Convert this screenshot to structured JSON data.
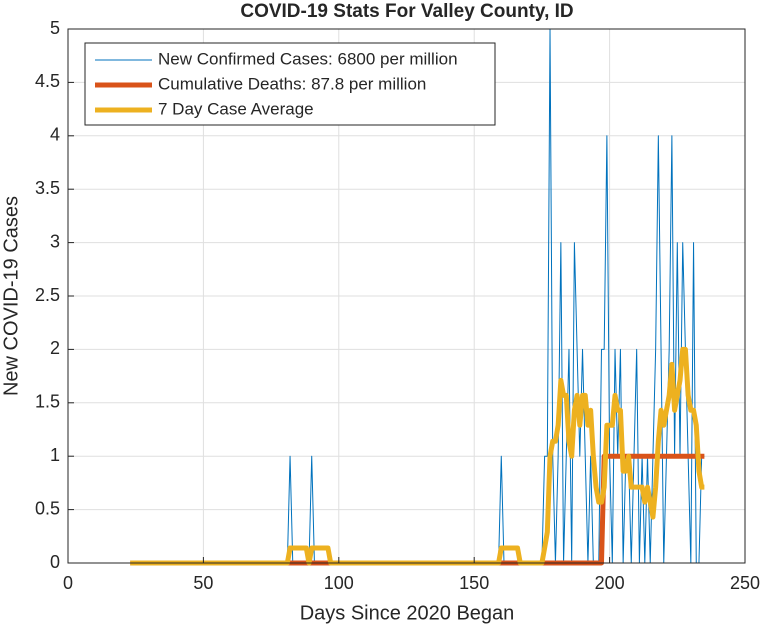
{
  "chart_data": {
    "type": "line",
    "title": "COVID-19 Stats For Valley County, ID",
    "xlabel": "Days Since 2020 Began",
    "ylabel": "New COVID-19 Cases",
    "xlim": [
      0,
      250
    ],
    "xticks": [
      0,
      50,
      100,
      150,
      200,
      250
    ],
    "ylim": [
      0,
      5
    ],
    "yticks": [
      0,
      0.5,
      1,
      1.5,
      2,
      2.5,
      3,
      3.5,
      4,
      4.5,
      5
    ],
    "grid": true,
    "legend": "upper left",
    "x": [
      23,
      24,
      25,
      26,
      27,
      28,
      29,
      30,
      31,
      32,
      33,
      34,
      35,
      36,
      37,
      38,
      39,
      40,
      41,
      42,
      43,
      44,
      45,
      46,
      47,
      48,
      49,
      50,
      51,
      52,
      53,
      54,
      55,
      56,
      57,
      58,
      59,
      60,
      61,
      62,
      63,
      64,
      65,
      66,
      67,
      68,
      69,
      70,
      71,
      72,
      73,
      74,
      75,
      76,
      77,
      78,
      79,
      80,
      81,
      82,
      83,
      84,
      85,
      86,
      87,
      88,
      89,
      90,
      91,
      92,
      93,
      94,
      95,
      96,
      97,
      98,
      99,
      100,
      101,
      102,
      103,
      104,
      105,
      106,
      107,
      108,
      109,
      110,
      111,
      112,
      113,
      114,
      115,
      116,
      117,
      118,
      119,
      120,
      121,
      122,
      123,
      124,
      125,
      126,
      127,
      128,
      129,
      130,
      131,
      132,
      133,
      134,
      135,
      136,
      137,
      138,
      139,
      140,
      141,
      142,
      143,
      144,
      145,
      146,
      147,
      148,
      149,
      150,
      151,
      152,
      153,
      154,
      155,
      156,
      157,
      158,
      159,
      160,
      161,
      162,
      163,
      164,
      165,
      166,
      167,
      168,
      169,
      170,
      171,
      172,
      173,
      174,
      175,
      176,
      177,
      178,
      179,
      180,
      181,
      182,
      183,
      184,
      185,
      186,
      187,
      188,
      189,
      190,
      191,
      192,
      193,
      194,
      195,
      196,
      197,
      198,
      199,
      200,
      201,
      202,
      203,
      204,
      205,
      206,
      207,
      208,
      209,
      210,
      211,
      212,
      213,
      214,
      215,
      216,
      217,
      218,
      219,
      220,
      221,
      222,
      223,
      224,
      225,
      226,
      227,
      228,
      229,
      230,
      231,
      232,
      233,
      234,
      235
    ],
    "series": [
      {
        "name": "New Confirmed Cases: 6800 per million",
        "color": "#0072bd",
        "width": 1,
        "values": [
          0,
          0,
          0,
          0,
          0,
          0,
          0,
          0,
          0,
          0,
          0,
          0,
          0,
          0,
          0,
          0,
          0,
          0,
          0,
          0,
          0,
          0,
          0,
          0,
          0,
          0,
          0,
          0,
          0,
          0,
          0,
          0,
          0,
          0,
          0,
          0,
          0,
          0,
          0,
          0,
          0,
          0,
          0,
          0,
          0,
          0,
          0,
          0,
          0,
          0,
          0,
          0,
          0,
          0,
          0,
          0,
          0,
          0,
          0,
          1,
          0,
          0,
          0,
          0,
          0,
          0,
          0,
          1,
          0,
          0,
          0,
          0,
          0,
          0,
          0,
          0,
          0,
          0,
          0,
          0,
          0,
          0,
          0,
          0,
          0,
          0,
          0,
          0,
          0,
          0,
          0,
          0,
          0,
          0,
          0,
          0,
          0,
          0,
          0,
          0,
          0,
          0,
          0,
          0,
          0,
          0,
          0,
          0,
          0,
          0,
          0,
          0,
          0,
          0,
          0,
          0,
          0,
          0,
          0,
          0,
          0,
          0,
          0,
          0,
          0,
          0,
          0,
          0,
          0,
          0,
          0,
          0,
          0,
          0,
          0,
          0,
          0,
          1,
          0,
          0,
          0,
          0,
          0,
          0,
          0,
          0,
          0,
          0,
          0,
          0,
          0,
          0,
          0,
          1,
          1,
          5,
          1,
          0,
          1,
          3,
          0,
          1,
          2,
          0,
          3,
          2,
          1,
          2,
          1,
          0,
          1,
          0,
          0,
          0,
          2,
          2,
          4,
          1,
          0,
          2,
          1,
          2,
          0,
          1,
          1,
          0,
          1,
          2,
          0,
          1,
          0,
          1,
          0,
          1,
          2,
          4,
          2,
          0,
          1,
          2,
          4,
          1,
          3,
          1,
          3,
          2,
          1,
          0,
          3,
          0,
          0,
          1,
          1
        ]
      },
      {
        "name": "Cumulative Deaths: 87.8 per million",
        "color": "#d95319",
        "width": 5,
        "values": [
          0,
          0,
          0,
          0,
          0,
          0,
          0,
          0,
          0,
          0,
          0,
          0,
          0,
          0,
          0,
          0,
          0,
          0,
          0,
          0,
          0,
          0,
          0,
          0,
          0,
          0,
          0,
          0,
          0,
          0,
          0,
          0,
          0,
          0,
          0,
          0,
          0,
          0,
          0,
          0,
          0,
          0,
          0,
          0,
          0,
          0,
          0,
          0,
          0,
          0,
          0,
          0,
          0,
          0,
          0,
          0,
          0,
          0,
          0,
          0,
          0,
          0,
          0,
          0,
          0,
          0,
          0,
          0,
          0,
          0,
          0,
          0,
          0,
          0,
          0,
          0,
          0,
          0,
          0,
          0,
          0,
          0,
          0,
          0,
          0,
          0,
          0,
          0,
          0,
          0,
          0,
          0,
          0,
          0,
          0,
          0,
          0,
          0,
          0,
          0,
          0,
          0,
          0,
          0,
          0,
          0,
          0,
          0,
          0,
          0,
          0,
          0,
          0,
          0,
          0,
          0,
          0,
          0,
          0,
          0,
          0,
          0,
          0,
          0,
          0,
          0,
          0,
          0,
          0,
          0,
          0,
          0,
          0,
          0,
          0,
          0,
          0,
          0,
          0,
          0,
          0,
          0,
          0,
          0,
          0,
          0,
          0,
          0,
          0,
          0,
          0,
          0,
          0,
          0,
          0,
          0,
          0,
          0,
          0,
          0,
          0,
          0,
          0,
          0,
          0,
          0,
          0,
          0,
          0,
          0,
          0,
          0,
          0,
          0,
          0,
          1,
          1,
          1,
          1,
          1,
          1,
          1,
          1,
          1,
          1,
          1,
          1,
          1,
          1,
          1,
          1,
          1,
          1,
          1,
          1,
          1,
          1,
          1,
          1,
          1,
          1,
          1,
          1,
          1,
          1,
          1,
          1,
          1,
          1,
          1,
          1,
          1,
          1
        ]
      },
      {
        "name": "7 Day Case Average",
        "color": "#edb120",
        "width": 5,
        "values": [
          0,
          0,
          0,
          0,
          0,
          0,
          0,
          0,
          0,
          0,
          0,
          0,
          0,
          0,
          0,
          0,
          0,
          0,
          0,
          0,
          0,
          0,
          0,
          0,
          0,
          0,
          0,
          0,
          0,
          0,
          0,
          0,
          0,
          0,
          0,
          0,
          0,
          0,
          0,
          0,
          0,
          0,
          0,
          0,
          0,
          0,
          0,
          0,
          0,
          0,
          0,
          0,
          0,
          0,
          0,
          0,
          0,
          0,
          0,
          0.14,
          0.14,
          0.14,
          0.14,
          0.14,
          0.14,
          0.14,
          0,
          0.14,
          0.14,
          0.14,
          0.14,
          0.14,
          0.14,
          0.14,
          0,
          0,
          0,
          0,
          0,
          0,
          0,
          0,
          0,
          0,
          0,
          0,
          0,
          0,
          0,
          0,
          0,
          0,
          0,
          0,
          0,
          0,
          0,
          0,
          0,
          0,
          0,
          0,
          0,
          0,
          0,
          0,
          0,
          0,
          0,
          0,
          0,
          0,
          0,
          0,
          0,
          0,
          0,
          0,
          0,
          0,
          0,
          0,
          0,
          0,
          0,
          0,
          0,
          0,
          0,
          0,
          0,
          0,
          0,
          0,
          0,
          0,
          0,
          0.14,
          0.14,
          0.14,
          0.14,
          0.14,
          0.14,
          0.14,
          0,
          0,
          0,
          0,
          0,
          0,
          0,
          0,
          0,
          0.14,
          0.29,
          1,
          1.14,
          1.14,
          1.29,
          1.71,
          1.57,
          1.57,
          1.14,
          1,
          1.43,
          1.57,
          1.29,
          1.57,
          1.57,
          1.29,
          1.43,
          1,
          0.71,
          0.57,
          0.57,
          0.71,
          1.29,
          1.29,
          1.29,
          1.57,
          1.43,
          1.43,
          0.86,
          0.86,
          1,
          0.71,
          0.71,
          0.71,
          0.71,
          0.71,
          0.57,
          0.71,
          0.57,
          0.43,
          0.71,
          1.14,
          1.43,
          1.29,
          1.43,
          1.57,
          1.86,
          1.43,
          1.57,
          1.71,
          2,
          2,
          1.57,
          1.43,
          1.43,
          1.29,
          0.86,
          0.71,
          0.71
        ]
      }
    ]
  }
}
